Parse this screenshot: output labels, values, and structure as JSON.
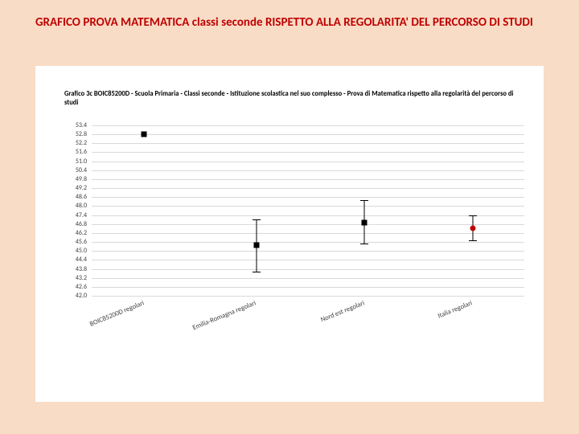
{
  "slide": {
    "background_color": "#f8dcc6",
    "title": "GRAFICO PROVA MATEMATICA classi seconde RISPETTO ALLA REGOLARITA' DEL PERCORSO DI STUDI",
    "title_color": "#c00000",
    "title_fontsize": 15
  },
  "chart": {
    "panel_bg": "#ffffff",
    "inner_title": "Grafico 3c  BOIC85200D - Scuola Primaria - Classi seconde - Istituzione scolastica nel suo complesso - Prova di Matematica rispetto alla regolarità del percorso di studi",
    "inner_title_fontsize": 8.5,
    "inner_title_color": "#000000",
    "y": {
      "min": 42.0,
      "max": 53.4,
      "step": 0.6,
      "tick_fontsize": 8,
      "tick_color": "#404040",
      "grid_color": "#d9d9d9"
    },
    "x": {
      "labels": [
        "BOIC85200D regolari",
        "Emilia-Romagna regolari",
        "Nord est regolari",
        "Italia regolari"
      ],
      "positions_pct": [
        12,
        38,
        63,
        88
      ],
      "tick_fontsize": 8.5,
      "tick_color": "#404040",
      "rotation_deg": -22
    },
    "series": [
      {
        "x_pct": 12,
        "value": 52.8,
        "low": null,
        "high": null,
        "color": "#000000",
        "shape": "square"
      },
      {
        "x_pct": 38,
        "value": 45.4,
        "low": 43.6,
        "high": 47.1,
        "color": "#000000",
        "shape": "square"
      },
      {
        "x_pct": 63,
        "value": 46.9,
        "low": 45.5,
        "high": 48.4,
        "color": "#000000",
        "shape": "square"
      },
      {
        "x_pct": 88,
        "value": 46.5,
        "low": 45.7,
        "high": 47.4,
        "color": "#c00000",
        "shape": "circle"
      }
    ],
    "whisker_color": "#000000"
  }
}
